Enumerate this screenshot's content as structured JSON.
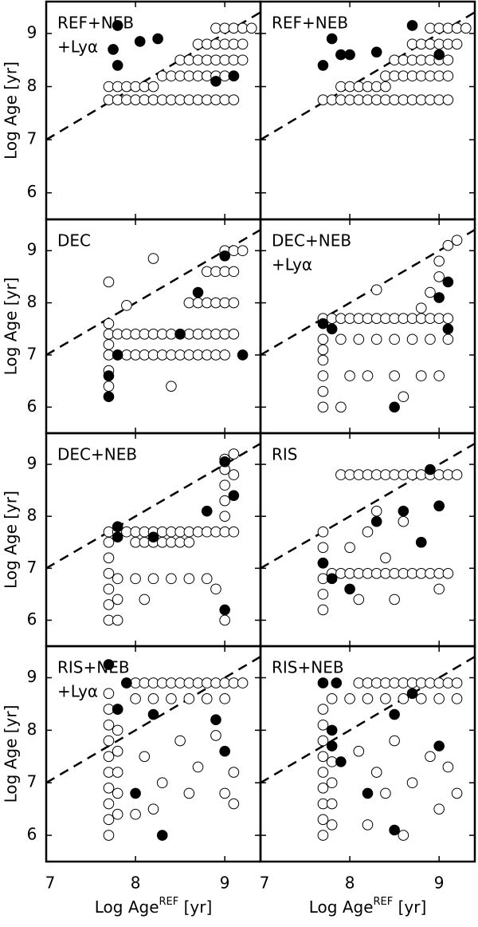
{
  "chart_data": [
    {
      "type": "scatter",
      "title": [
        "REF+NEB",
        "+Lyα"
      ],
      "ylabel": "Log Age [yr]",
      "xlim": [
        7,
        9.4
      ],
      "ylim": [
        5.5,
        9.6
      ],
      "xticks": [
        7,
        8,
        9
      ],
      "yticks": [
        6,
        7,
        8,
        9
      ],
      "series": [
        {
          "color": "#ffffff",
          "x": [
            7.7,
            7.8,
            7.9,
            8.0,
            8.1,
            8.2,
            8.3,
            8.4,
            8.5,
            8.6,
            8.7,
            8.8,
            8.9,
            9.0,
            9.1,
            7.7,
            7.8,
            7.9,
            8.0,
            8.1,
            8.2,
            8.3,
            8.4,
            8.5,
            8.6,
            8.7,
            8.8,
            8.9,
            9.0,
            9.1,
            8.5,
            8.6,
            8.7,
            8.8,
            8.9,
            9.0,
            9.1,
            9.2,
            8.7,
            8.8,
            8.9,
            9.0,
            9.1,
            9.2,
            8.9,
            9.0,
            9.1,
            9.2,
            9.3
          ],
          "values": [
            7.75,
            7.75,
            7.75,
            7.75,
            7.75,
            7.75,
            7.75,
            7.75,
            7.75,
            7.75,
            7.75,
            7.75,
            7.75,
            7.75,
            7.75,
            8.0,
            8.0,
            8.0,
            8.0,
            8.0,
            8.0,
            8.2,
            8.2,
            8.2,
            8.2,
            8.2,
            8.2,
            8.2,
            8.2,
            8.2,
            8.5,
            8.5,
            8.5,
            8.5,
            8.5,
            8.5,
            8.5,
            8.5,
            8.8,
            8.8,
            8.8,
            8.8,
            8.8,
            8.8,
            9.1,
            9.1,
            9.1,
            9.1,
            9.1
          ]
        },
        {
          "color": "#000000",
          "x": [
            7.75,
            7.8,
            7.8,
            8.05,
            8.25,
            8.9,
            9.1
          ],
          "values": [
            8.7,
            8.4,
            9.15,
            8.85,
            8.9,
            8.1,
            8.2
          ]
        }
      ]
    },
    {
      "type": "scatter",
      "title": [
        "REF+NEB"
      ],
      "xlim": [
        7,
        9.4
      ],
      "ylim": [
        5.5,
        9.6
      ],
      "xticks": [
        7,
        8,
        9
      ],
      "yticks": [
        6,
        7,
        8,
        9
      ],
      "series": [
        {
          "color": "#ffffff",
          "x": [
            7.7,
            7.8,
            7.9,
            8.0,
            8.1,
            8.2,
            8.3,
            8.4,
            8.5,
            8.6,
            8.7,
            8.8,
            8.9,
            9.0,
            9.1,
            7.9,
            8.0,
            8.1,
            8.2,
            8.3,
            8.4,
            8.4,
            8.5,
            8.6,
            8.7,
            8.8,
            8.9,
            9.0,
            9.1,
            8.5,
            8.6,
            8.7,
            8.8,
            8.9,
            9.0,
            9.1,
            8.7,
            8.8,
            8.9,
            9.0,
            9.1,
            9.2,
            8.9,
            9.0,
            9.1,
            9.2,
            9.3
          ],
          "values": [
            7.75,
            7.75,
            7.75,
            7.75,
            7.75,
            7.75,
            7.75,
            7.75,
            7.75,
            7.75,
            7.75,
            7.75,
            7.75,
            7.75,
            7.75,
            8.0,
            8.0,
            8.0,
            8.0,
            8.0,
            8.0,
            8.2,
            8.2,
            8.2,
            8.2,
            8.2,
            8.2,
            8.2,
            8.2,
            8.5,
            8.5,
            8.5,
            8.5,
            8.5,
            8.5,
            8.5,
            8.8,
            8.8,
            8.8,
            8.8,
            8.8,
            8.8,
            9.1,
            9.1,
            9.1,
            9.1,
            9.1
          ]
        },
        {
          "color": "#000000",
          "x": [
            7.7,
            7.8,
            7.9,
            8.0,
            8.3,
            8.7,
            9.0
          ],
          "values": [
            8.4,
            8.9,
            8.6,
            8.6,
            8.65,
            9.15,
            8.6
          ]
        }
      ]
    },
    {
      "type": "scatter",
      "title": [
        "DEC"
      ],
      "ylabel": "Log Age [yr]",
      "xlim": [
        7,
        9.4
      ],
      "ylim": [
        5.5,
        9.6
      ],
      "xticks": [
        7,
        8,
        9
      ],
      "yticks": [
        6,
        7,
        8,
        9
      ],
      "series": [
        {
          "color": "#ffffff",
          "x": [
            7.7,
            7.7,
            7.7,
            7.7,
            7.7,
            7.7,
            7.8,
            7.9,
            8.0,
            8.1,
            8.2,
            8.3,
            8.4,
            8.5,
            8.6,
            8.7,
            8.8,
            8.9,
            9.0,
            7.8,
            7.9,
            8.0,
            8.1,
            8.2,
            8.3,
            8.4,
            8.5,
            8.6,
            8.7,
            8.8,
            8.9,
            9.0,
            9.1,
            8.6,
            8.7,
            8.8,
            8.9,
            9.0,
            9.1,
            8.8,
            8.9,
            9.0,
            9.1,
            9.0,
            9.1,
            9.2,
            7.7,
            7.9,
            8.2,
            8.4
          ],
          "values": [
            6.4,
            6.7,
            7.0,
            7.2,
            7.4,
            7.6,
            7.0,
            7.0,
            7.0,
            7.0,
            7.0,
            7.0,
            7.0,
            7.0,
            7.0,
            7.0,
            7.0,
            7.0,
            7.0,
            7.4,
            7.4,
            7.4,
            7.4,
            7.4,
            7.4,
            7.4,
            7.4,
            7.4,
            7.4,
            7.4,
            7.4,
            7.4,
            7.4,
            8.0,
            8.0,
            8.0,
            8.0,
            8.0,
            8.0,
            8.6,
            8.6,
            8.6,
            8.6,
            9.0,
            9.0,
            9.0,
            8.4,
            7.95,
            8.85,
            6.4
          ]
        },
        {
          "color": "#000000",
          "x": [
            7.7,
            7.7,
            7.8,
            8.5,
            8.7,
            9.2,
            9.0
          ],
          "values": [
            6.2,
            6.6,
            7.0,
            7.4,
            8.2,
            7.0,
            8.9
          ]
        }
      ]
    },
    {
      "type": "scatter",
      "title": [
        "DEC+NEB",
        "+Lyα"
      ],
      "xlim": [
        7,
        9.4
      ],
      "ylim": [
        5.5,
        9.6
      ],
      "xticks": [
        7,
        8,
        9
      ],
      "yticks": [
        6,
        7,
        8,
        9
      ],
      "series": [
        {
          "color": "#ffffff",
          "x": [
            7.7,
            7.8,
            7.9,
            8.0,
            8.1,
            8.2,
            8.3,
            8.4,
            8.5,
            8.6,
            8.7,
            8.8,
            8.9,
            9.0,
            9.1,
            7.7,
            7.9,
            8.1,
            8.3,
            8.5,
            8.7,
            8.9,
            9.1,
            7.7,
            7.7,
            7.7,
            7.7,
            7.7,
            8.0,
            8.2,
            8.5,
            8.8,
            9.0,
            8.9,
            9.0,
            9.0,
            9.1,
            9.2,
            8.3,
            8.8,
            7.9,
            8.6
          ],
          "values": [
            7.7,
            7.7,
            7.7,
            7.7,
            7.7,
            7.7,
            7.7,
            7.7,
            7.7,
            7.7,
            7.7,
            7.7,
            7.7,
            7.7,
            7.7,
            7.3,
            7.3,
            7.3,
            7.3,
            7.3,
            7.3,
            7.3,
            7.3,
            6.0,
            6.3,
            6.6,
            6.9,
            7.1,
            6.6,
            6.6,
            6.6,
            6.6,
            6.6,
            8.2,
            8.5,
            8.8,
            9.1,
            9.2,
            8.25,
            7.9,
            6.0,
            6.2
          ]
        },
        {
          "color": "#000000",
          "x": [
            7.7,
            7.8,
            8.5,
            9.0,
            9.1,
            9.1
          ],
          "values": [
            7.6,
            7.5,
            6.0,
            8.1,
            8.4,
            7.5
          ]
        }
      ]
    },
    {
      "type": "scatter",
      "title": [
        "DEC+NEB"
      ],
      "ylabel": "Log Age [yr]",
      "xlim": [
        7,
        9.4
      ],
      "ylim": [
        5.5,
        9.6
      ],
      "xticks": [
        7,
        8,
        9
      ],
      "yticks": [
        6,
        7,
        8,
        9
      ],
      "series": [
        {
          "color": "#ffffff",
          "x": [
            7.7,
            7.8,
            7.9,
            8.0,
            8.1,
            8.2,
            8.3,
            8.4,
            8.5,
            8.6,
            8.7,
            8.8,
            8.9,
            9.0,
            9.1,
            8.0,
            8.1,
            8.2,
            8.3,
            8.4,
            8.5,
            8.6,
            7.7,
            7.7,
            7.7,
            7.7,
            7.7,
            7.7,
            7.8,
            7.8,
            7.8,
            8.0,
            8.2,
            8.4,
            8.6,
            8.8,
            9.0,
            9.0,
            9.0,
            9.0,
            9.0,
            9.1,
            9.1,
            8.9,
            9.0,
            8.1
          ],
          "values": [
            7.7,
            7.7,
            7.7,
            7.7,
            7.7,
            7.7,
            7.7,
            7.7,
            7.7,
            7.7,
            7.7,
            7.7,
            7.7,
            7.7,
            7.7,
            7.5,
            7.5,
            7.5,
            7.5,
            7.5,
            7.5,
            7.5,
            6.0,
            6.3,
            6.6,
            6.9,
            7.2,
            7.5,
            6.0,
            6.4,
            6.8,
            6.8,
            6.8,
            6.8,
            6.8,
            6.8,
            8.0,
            8.3,
            8.6,
            8.9,
            9.1,
            9.2,
            8.8,
            6.6,
            6.0,
            6.4
          ]
        },
        {
          "color": "#000000",
          "x": [
            7.8,
            7.8,
            8.2,
            8.8,
            9.0,
            9.1,
            9.0
          ],
          "values": [
            7.8,
            7.6,
            7.6,
            8.1,
            9.05,
            8.4,
            6.2
          ]
        }
      ]
    },
    {
      "type": "scatter",
      "title": [
        "RIS"
      ],
      "xlim": [
        7,
        9.4
      ],
      "ylim": [
        5.5,
        9.6
      ],
      "xticks": [
        7,
        8,
        9
      ],
      "yticks": [
        6,
        7,
        8,
        9
      ],
      "series": [
        {
          "color": "#ffffff",
          "x": [
            7.9,
            8.0,
            8.1,
            8.2,
            8.3,
            8.4,
            8.5,
            8.6,
            8.7,
            8.8,
            8.9,
            9.0,
            9.1,
            9.2,
            7.8,
            7.9,
            8.0,
            8.1,
            8.2,
            8.3,
            8.4,
            8.5,
            8.6,
            8.7,
            8.8,
            8.9,
            9.0,
            9.1,
            7.7,
            7.7,
            7.7,
            7.7,
            7.7,
            7.7,
            8.0,
            8.2,
            8.4,
            8.6,
            8.8,
            9.0,
            8.3,
            8.1,
            8.5,
            9.0
          ],
          "values": [
            8.8,
            8.8,
            8.8,
            8.8,
            8.8,
            8.8,
            8.8,
            8.8,
            8.8,
            8.8,
            8.8,
            8.8,
            8.8,
            8.8,
            6.9,
            6.9,
            6.9,
            6.9,
            6.9,
            6.9,
            6.9,
            6.9,
            6.9,
            6.9,
            6.9,
            6.9,
            6.9,
            6.9,
            6.2,
            6.5,
            6.8,
            7.1,
            7.4,
            7.7,
            7.4,
            7.7,
            7.2,
            7.9,
            7.5,
            8.2,
            8.1,
            6.4,
            6.4,
            6.6
          ]
        },
        {
          "color": "#000000",
          "x": [
            7.7,
            7.8,
            8.0,
            8.3,
            8.6,
            8.8,
            8.9,
            9.0
          ],
          "values": [
            7.1,
            6.8,
            6.6,
            7.9,
            8.1,
            7.5,
            8.9,
            8.2
          ]
        }
      ]
    },
    {
      "type": "scatter",
      "title": [
        "RIS+NEB",
        "+Lyα"
      ],
      "ylabel": "Log Age [yr]",
      "xlabel": [
        "Log Age",
        "REF",
        " [yr]"
      ],
      "xlim": [
        7,
        9.4
      ],
      "ylim": [
        5.5,
        9.6
      ],
      "xticks": [
        7,
        8,
        9
      ],
      "yticks": [
        6,
        7,
        8,
        9
      ],
      "series": [
        {
          "color": "#ffffff",
          "x": [
            7.7,
            7.7,
            7.7,
            7.7,
            7.7,
            7.7,
            7.7,
            7.7,
            7.7,
            7.7,
            7.8,
            7.8,
            7.8,
            7.8,
            7.8,
            7.8,
            7.9,
            8.0,
            8.1,
            8.2,
            8.3,
            8.4,
            8.5,
            8.6,
            8.7,
            8.8,
            8.9,
            9.0,
            9.1,
            9.2,
            8.0,
            8.2,
            8.4,
            8.6,
            8.8,
            9.0,
            8.1,
            8.3,
            8.5,
            8.7,
            8.9,
            9.1,
            8.2,
            8.6,
            9.0,
            9.1,
            8.0
          ],
          "values": [
            6.0,
            6.3,
            6.6,
            6.9,
            7.2,
            7.5,
            7.8,
            8.1,
            8.4,
            8.7,
            6.4,
            6.8,
            7.2,
            7.6,
            8.0,
            8.4,
            8.9,
            8.9,
            8.9,
            8.9,
            8.9,
            8.9,
            8.9,
            8.9,
            8.9,
            8.9,
            8.9,
            8.9,
            8.9,
            8.9,
            8.6,
            8.6,
            8.6,
            8.6,
            8.6,
            8.6,
            7.5,
            7.0,
            7.8,
            7.3,
            7.9,
            7.2,
            6.5,
            6.8,
            6.8,
            6.6,
            6.4
          ]
        },
        {
          "color": "#000000",
          "x": [
            7.7,
            7.8,
            7.9,
            8.2,
            8.0,
            8.3,
            9.0,
            8.9
          ],
          "values": [
            9.25,
            8.4,
            8.9,
            8.3,
            6.8,
            6.0,
            7.6,
            8.2
          ]
        }
      ]
    },
    {
      "type": "scatter",
      "title": [
        "RIS+NEB"
      ],
      "xlabel": [
        "Log Age",
        "REF",
        " [yr]"
      ],
      "xlim": [
        7,
        9.4
      ],
      "ylim": [
        5.5,
        9.6
      ],
      "xticks": [
        7,
        8,
        9
      ],
      "yticks": [
        6,
        7,
        8,
        9
      ],
      "series": [
        {
          "color": "#ffffff",
          "x": [
            7.7,
            7.7,
            7.7,
            7.7,
            7.7,
            7.7,
            7.7,
            7.7,
            7.7,
            7.8,
            7.8,
            7.8,
            7.8,
            7.8,
            8.1,
            8.2,
            8.3,
            8.4,
            8.5,
            8.6,
            8.7,
            8.8,
            8.9,
            9.0,
            9.1,
            9.2,
            8.0,
            8.2,
            8.4,
            8.6,
            8.8,
            9.0,
            9.2,
            8.1,
            8.3,
            8.5,
            8.7,
            8.9,
            9.1,
            8.2,
            8.6,
            9.0,
            9.2,
            8.4
          ],
          "values": [
            6.0,
            6.3,
            6.6,
            6.9,
            7.2,
            7.5,
            7.8,
            8.1,
            8.4,
            6.2,
            6.6,
            7.0,
            7.4,
            8.6,
            8.9,
            8.9,
            8.9,
            8.9,
            8.9,
            8.9,
            8.9,
            8.9,
            8.9,
            8.9,
            8.9,
            8.9,
            8.6,
            8.6,
            8.6,
            8.6,
            8.6,
            8.6,
            8.6,
            7.6,
            7.2,
            7.8,
            7.0,
            7.5,
            7.3,
            6.2,
            6.0,
            6.5,
            6.8,
            6.8
          ]
        },
        {
          "color": "#000000",
          "x": [
            7.7,
            7.8,
            7.8,
            7.9,
            7.85,
            8.2,
            8.5,
            8.7,
            9.0,
            8.5
          ],
          "values": [
            8.9,
            8.0,
            7.7,
            7.4,
            8.9,
            6.8,
            8.3,
            8.7,
            7.7,
            6.1
          ]
        }
      ]
    }
  ]
}
